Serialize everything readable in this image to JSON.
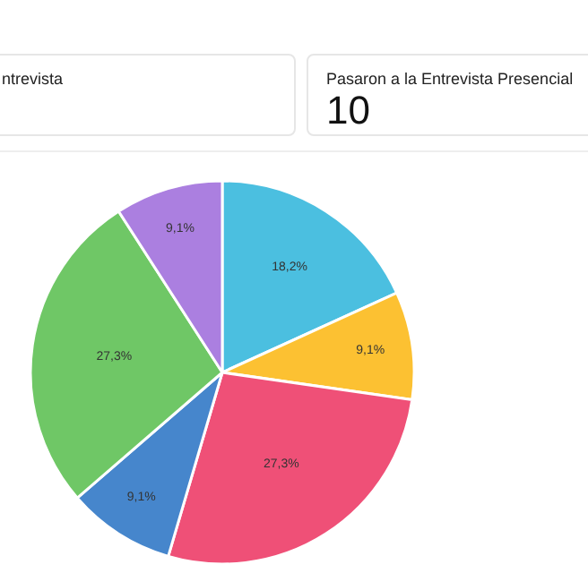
{
  "chart_data": [
    {
      "type": "other",
      "title": "ntrevista"
    },
    {
      "type": "other",
      "title": "Pasaron a la Entrevista Presencial",
      "annotations": [
        "10"
      ]
    },
    {
      "type": "pie",
      "categories": [
        null,
        null,
        null,
        null,
        null,
        null
      ],
      "values": [
        18.2,
        9.1,
        27.3,
        9.1,
        27.3,
        9.1
      ],
      "value_labels": [
        "18,2%",
        "9,1%",
        "27,3%",
        "9,1%",
        "27,3%",
        "9,1%"
      ],
      "colors": [
        "#4bbfe0",
        "#fcc132",
        "#ef5077",
        "#4686cc",
        "#6fc766",
        "#ab7fe0"
      ],
      "legend": false
    }
  ]
}
